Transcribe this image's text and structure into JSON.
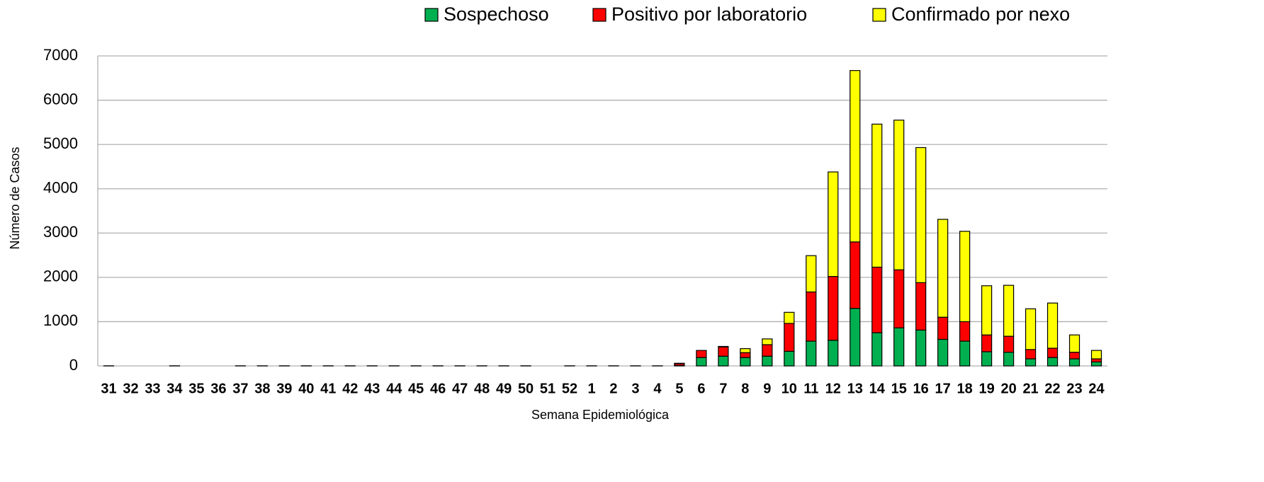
{
  "chart_data": {
    "type": "stacked_bar",
    "x_label": "Semana Epidemiológica",
    "y_label": "Número de Casos",
    "categories": [
      "31",
      "32",
      "33",
      "34",
      "35",
      "36",
      "37",
      "38",
      "39",
      "40",
      "41",
      "42",
      "43",
      "44",
      "45",
      "46",
      "47",
      "48",
      "49",
      "50",
      "51",
      "52",
      "1",
      "2",
      "3",
      "4",
      "5",
      "6",
      "7",
      "8",
      "9",
      "10",
      "11",
      "12",
      "13",
      "14",
      "15",
      "16",
      "17",
      "18",
      "19",
      "20",
      "21",
      "22",
      "23",
      "24"
    ],
    "series": [
      {
        "name": "Sospechoso",
        "color": "#00b050",
        "values": [
          3,
          0,
          0,
          3,
          0,
          0,
          3,
          3,
          3,
          3,
          3,
          3,
          3,
          3,
          3,
          3,
          3,
          3,
          3,
          3,
          0,
          3,
          3,
          3,
          3,
          3,
          10,
          190,
          220,
          190,
          220,
          330,
          560,
          580,
          1300,
          750,
          860,
          810,
          600,
          560,
          320,
          310,
          160,
          190,
          160,
          90
        ]
      },
      {
        "name": "Positivo por laboratorio",
        "color": "#ff0000",
        "values": [
          0,
          0,
          0,
          0,
          0,
          0,
          0,
          0,
          0,
          0,
          0,
          0,
          0,
          0,
          0,
          0,
          0,
          0,
          0,
          0,
          0,
          0,
          0,
          0,
          0,
          0,
          40,
          160,
          210,
          110,
          260,
          630,
          1110,
          1440,
          1500,
          1480,
          1310,
          1070,
          500,
          440,
          380,
          360,
          210,
          210,
          150,
          70
        ]
      },
      {
        "name": "Confirmado por nexo",
        "color": "#ffff00",
        "values": [
          0,
          0,
          0,
          0,
          0,
          0,
          0,
          0,
          0,
          0,
          0,
          0,
          0,
          0,
          0,
          0,
          0,
          0,
          0,
          0,
          0,
          0,
          0,
          0,
          0,
          0,
          10,
          0,
          10,
          90,
          130,
          250,
          820,
          2360,
          3870,
          3230,
          3380,
          3050,
          2210,
          2040,
          1110,
          1150,
          920,
          1020,
          390,
          190
        ]
      }
    ],
    "ylim": [
      0,
      7000
    ],
    "yticks": [
      0,
      1000,
      2000,
      3000,
      4000,
      5000,
      6000,
      7000
    ],
    "grid": true,
    "legend": "top-right"
  }
}
